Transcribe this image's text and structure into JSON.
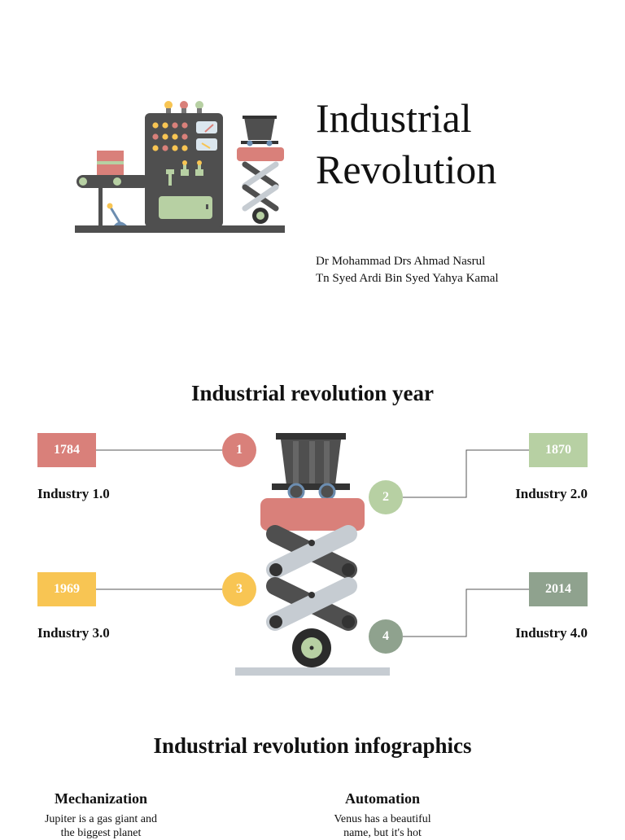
{
  "header": {
    "title_line1": "Industrial",
    "title_line2": "Revolution",
    "author1": "Dr Mohammad Drs Ahmad Nasrul",
    "author2": "Tn Syed Ardi Bin Syed Yahya Kamal"
  },
  "timeline": {
    "title": "Industrial revolution year",
    "items": [
      {
        "year": "1784",
        "number": "1",
        "label": "Industry 1.0",
        "color": "#d9807a"
      },
      {
        "year": "1870",
        "number": "2",
        "label": "Industry 2.0",
        "color": "#b7d0a3"
      },
      {
        "year": "1969",
        "number": "3",
        "label": "Industry 3.0",
        "color": "#f8c553"
      },
      {
        "year": "2014",
        "number": "4",
        "label": "Industry 4.0",
        "color": "#8fa28e"
      }
    ]
  },
  "infographics": {
    "title": "Industrial revolution infographics",
    "items": [
      {
        "title": "Mechanization",
        "line1": "Jupiter is a gas giant and",
        "line2": "the biggest planet"
      },
      {
        "title": "Automation",
        "line1": "Venus has a beautiful",
        "line2": "name, but it's hot"
      }
    ]
  },
  "colors": {
    "machine_dark": "#4f4f4f",
    "accent_red": "#d9807a",
    "accent_green": "#b7d0a3",
    "accent_yellow": "#f8c553",
    "steel": "#c6ccd2"
  },
  "icons": [
    "factory-machine-illustration",
    "mine-cart-lift-illustration"
  ]
}
